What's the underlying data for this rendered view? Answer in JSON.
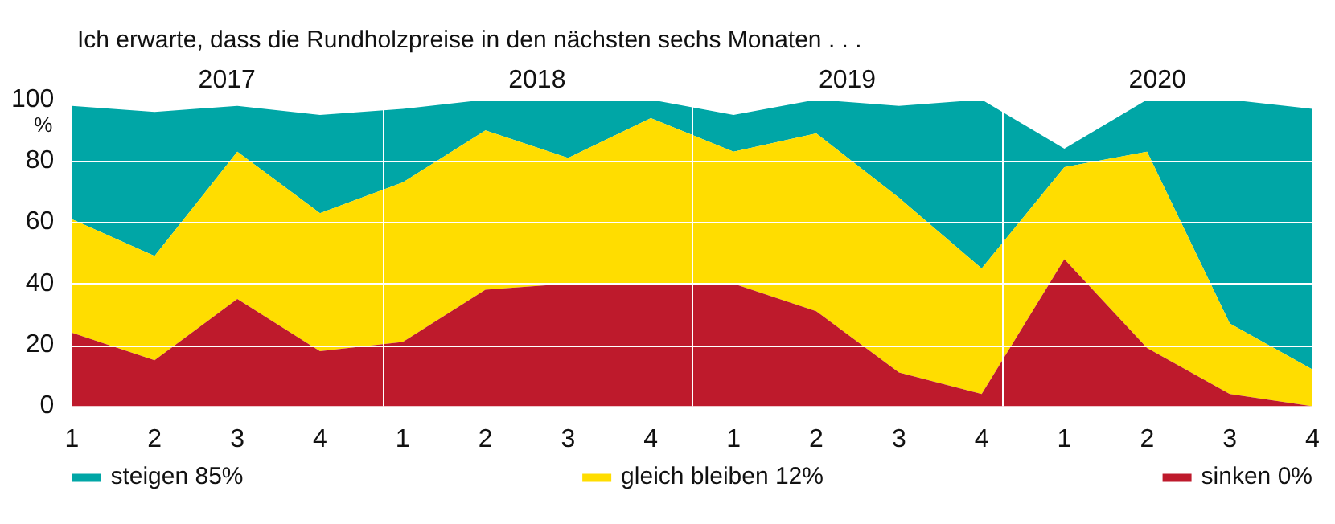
{
  "chart_data": {
    "type": "area",
    "stacked": true,
    "title": "Ich erwarte, dass die Rundholzpreise in den nächsten sechs Monaten . . .",
    "ylabel": "%",
    "categories": [
      "1",
      "2",
      "3",
      "4",
      "1",
      "2",
      "3",
      "4",
      "1",
      "2",
      "3",
      "4",
      "1",
      "2",
      "3",
      "4"
    ],
    "annotations": [
      "2017",
      "2018",
      "2019",
      "2020"
    ],
    "series": [
      {
        "name": "sinken 0%",
        "color": "#be1a2c",
        "values": [
          24,
          15,
          35,
          18,
          21,
          38,
          40,
          40,
          40,
          31,
          11,
          4,
          48,
          19,
          4,
          0
        ]
      },
      {
        "name": "gleich bleiben 12%",
        "color": "#ffdd00",
        "values": [
          37,
          34,
          48,
          45,
          52,
          52,
          41,
          54,
          43,
          58,
          57,
          41,
          30,
          64,
          23,
          12
        ]
      },
      {
        "name": "steigen 85%",
        "color": "#00a6a6",
        "values": [
          37,
          47,
          15,
          32,
          24,
          10,
          19,
          6,
          12,
          11,
          30,
          55,
          6,
          17,
          73,
          85
        ]
      }
    ],
    "ylim": [
      0,
      100
    ],
    "yticks": [
      0,
      20,
      40,
      60,
      80,
      100
    ],
    "grid": "y",
    "legend": "bottom"
  }
}
